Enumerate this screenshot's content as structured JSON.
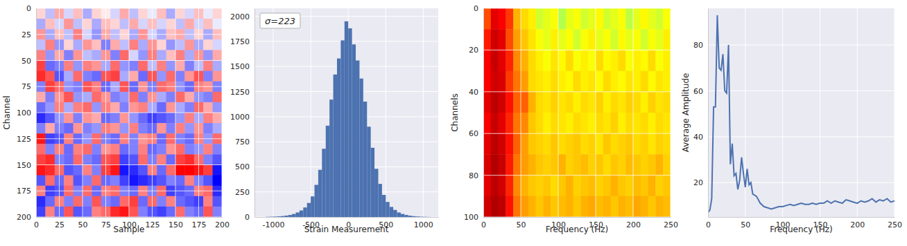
{
  "chart_data": [
    {
      "type": "heatmap",
      "x_label": "Sample",
      "y_label": "Channel",
      "xlim": [
        0,
        200
      ],
      "ylim": [
        200,
        0
      ],
      "xticks": [
        0,
        25,
        50,
        75,
        100,
        125,
        150,
        175,
        200
      ],
      "yticks": [
        0,
        25,
        50,
        75,
        100,
        125,
        150,
        175,
        200
      ],
      "grid": true,
      "color": "bwr",
      "color_range": [
        -600,
        600
      ],
      "x_edges": [
        0,
        10,
        20,
        30,
        40,
        50,
        60,
        70,
        80,
        90,
        100,
        110,
        120,
        130,
        140,
        150,
        160,
        170,
        180,
        190,
        200
      ],
      "y_edges": [
        0,
        10,
        20,
        30,
        40,
        50,
        60,
        70,
        80,
        90,
        100,
        110,
        120,
        130,
        140,
        150,
        160,
        170,
        180,
        190,
        200
      ],
      "cells": [
        [
          100,
          -150,
          200,
          -100,
          150,
          -200,
          100,
          50,
          -100,
          200,
          -150,
          100,
          -50,
          150,
          -200,
          100,
          -100,
          150,
          -50,
          100
        ],
        [
          -200,
          150,
          -100,
          250,
          -150,
          100,
          -200,
          150,
          100,
          -150,
          200,
          -100,
          150,
          -100,
          100,
          -150,
          200,
          -100,
          150,
          -50
        ],
        [
          250,
          -200,
          150,
          -150,
          300,
          -100,
          -250,
          200,
          -150,
          100,
          -200,
          250,
          -100,
          -200,
          150,
          200,
          -150,
          100,
          -200,
          150
        ],
        [
          -150,
          300,
          -250,
          100,
          -200,
          250,
          150,
          -300,
          200,
          -150,
          300,
          -200,
          250,
          100,
          -250,
          -150,
          250,
          -200,
          100,
          -100
        ],
        [
          300,
          -250,
          200,
          -300,
          250,
          -150,
          -200,
          250,
          -300,
          350,
          -100,
          -250,
          300,
          -200,
          150,
          300,
          -200,
          250,
          -250,
          200
        ],
        [
          450,
          -350,
          -300,
          300,
          -250,
          300,
          250,
          -200,
          350,
          -250,
          -300,
          350,
          -150,
          300,
          -250,
          200,
          -300,
          -150,
          300,
          -200
        ],
        [
          500,
          400,
          -400,
          -200,
          350,
          -300,
          -350,
          400,
          450,
          -200,
          200,
          -350,
          400,
          -250,
          350,
          -300,
          250,
          400,
          -300,
          250
        ],
        [
          -300,
          450,
          350,
          -250,
          -300,
          400,
          300,
          -350,
          -200,
          400,
          -350,
          250,
          -300,
          350,
          300,
          -250,
          -350,
          300,
          250,
          -300
        ],
        [
          200,
          -300,
          250,
          400,
          -250,
          -200,
          350,
          250,
          -300,
          -250,
          350,
          -300,
          250,
          -200,
          -300,
          350,
          200,
          -250,
          -300,
          350
        ],
        [
          -350,
          -250,
          300,
          -200,
          300,
          350,
          -250,
          300,
          200,
          -300,
          250,
          300,
          -200,
          -350,
          250,
          -200,
          -300,
          350,
          200,
          -250
        ],
        [
          -500,
          -400,
          -250,
          250,
          -300,
          250,
          200,
          -350,
          -300,
          250,
          -250,
          -350,
          -450,
          -400,
          -350,
          -250,
          300,
          -200,
          300,
          200
        ],
        [
          -300,
          200,
          -300,
          -350,
          250,
          -300,
          -250,
          300,
          250,
          -250,
          300,
          -300,
          -350,
          250,
          -300,
          300,
          -250,
          250,
          -300,
          -200
        ],
        [
          550,
          -450,
          -400,
          300,
          -350,
          -250,
          350,
          -300,
          -350,
          300,
          -300,
          250,
          300,
          -350,
          350,
          -300,
          -350,
          300,
          -250,
          350
        ],
        [
          350,
          -300,
          300,
          -350,
          300,
          350,
          -300,
          250,
          300,
          -350,
          -300,
          300,
          -350,
          -300,
          250,
          350,
          -300,
          -250,
          300,
          -300
        ],
        [
          450,
          500,
          -300,
          -350,
          350,
          -300,
          -350,
          400,
          450,
          -450,
          -400,
          350,
          -300,
          300,
          -350,
          450,
          500,
          350,
          -300,
          -400
        ],
        [
          550,
          500,
          350,
          -400,
          -350,
          300,
          -300,
          450,
          550,
          -550,
          -500,
          -400,
          300,
          -350,
          350,
          600,
          600,
          550,
          450,
          -550
        ],
        [
          -400,
          350,
          -350,
          300,
          -400,
          -300,
          350,
          -350,
          -300,
          -450,
          -550,
          -500,
          -450,
          -400,
          -300,
          -350,
          300,
          -300,
          -400,
          -600
        ],
        [
          300,
          -450,
          -400,
          350,
          -300,
          350,
          -350,
          300,
          350,
          -300,
          -350,
          300,
          -300,
          350,
          -450,
          -400,
          -350,
          300,
          350,
          -500
        ],
        [
          -500,
          -350,
          300,
          -300,
          350,
          -300,
          400,
          -300,
          -350,
          350,
          450,
          -350,
          350,
          -300,
          300,
          -350,
          -400,
          -450,
          300,
          -400
        ],
        [
          -450,
          300,
          -350,
          400,
          -400,
          -350,
          300,
          350,
          500,
          550,
          400,
          -300,
          -400,
          -450,
          -350,
          350,
          -300,
          -350,
          400,
          -300
        ]
      ]
    },
    {
      "type": "histogram",
      "x_label": "Strain Measurement",
      "annotation": "σ=223",
      "xlim": [
        -1250,
        1200
      ],
      "ylim": [
        0,
        2080
      ],
      "xticks": [
        -1000,
        -500,
        0,
        500,
        1000
      ],
      "yticks": [
        0,
        250,
        500,
        750,
        1000,
        1250,
        1500,
        1750,
        2000
      ],
      "grid": true,
      "color": "#4c72b0",
      "bins": [
        -1100,
        -1050,
        -1000,
        -950,
        -900,
        -850,
        -800,
        -750,
        -700,
        -650,
        -600,
        -550,
        -500,
        -450,
        -400,
        -350,
        -300,
        -250,
        -200,
        -150,
        -100,
        -50,
        0,
        50,
        100,
        150,
        200,
        250,
        300,
        350,
        400,
        450,
        500,
        550,
        600,
        650,
        700,
        750,
        800,
        850,
        900,
        950,
        1000,
        1050,
        1100
      ],
      "counts": [
        2,
        3,
        4,
        6,
        9,
        14,
        20,
        30,
        45,
        65,
        95,
        140,
        205,
        320,
        470,
        680,
        910,
        1170,
        1420,
        1580,
        1760,
        1950,
        1880,
        1720,
        1560,
        1380,
        1150,
        900,
        690,
        480,
        330,
        220,
        150,
        100,
        70,
        45,
        30,
        20,
        13,
        8,
        5,
        3,
        2,
        1
      ]
    },
    {
      "type": "heatmap",
      "x_label": "Frequency (Hz)",
      "y_label": "Channels",
      "xlim": [
        0,
        250
      ],
      "ylim": [
        100,
        0
      ],
      "xticks": [
        0,
        50,
        100,
        150,
        200,
        250
      ],
      "yticks": [
        0,
        20,
        40,
        60,
        80,
        100
      ],
      "grid": true,
      "color": "jet",
      "color_range": [
        0,
        100
      ],
      "x_edges": [
        0,
        10,
        20,
        30,
        40,
        50,
        60,
        70,
        80,
        90,
        100,
        110,
        120,
        130,
        140,
        150,
        160,
        170,
        180,
        190,
        200,
        210,
        220,
        230,
        240,
        250
      ],
      "y_edges": [
        0,
        10,
        20,
        30,
        40,
        50,
        60,
        70,
        80,
        90,
        100
      ],
      "cells": [
        [
          80,
          90,
          88,
          82,
          70,
          66,
          64,
          58,
          60,
          62,
          55,
          60,
          62,
          58,
          60,
          63,
          58,
          60,
          62,
          56,
          60,
          63,
          60,
          58,
          62
        ],
        [
          85,
          92,
          90,
          80,
          72,
          68,
          65,
          62,
          60,
          64,
          60,
          62,
          58,
          62,
          64,
          60,
          62,
          58,
          63,
          60,
          62,
          58,
          62,
          60,
          64
        ],
        [
          88,
          93,
          90,
          84,
          74,
          70,
          66,
          64,
          62,
          65,
          63,
          66,
          62,
          64,
          62,
          66,
          63,
          64,
          66,
          62,
          64,
          63,
          66,
          62,
          64
        ],
        [
          88,
          92,
          91,
          82,
          76,
          72,
          66,
          65,
          64,
          66,
          64,
          63,
          66,
          64,
          65,
          63,
          66,
          64,
          63,
          65,
          64,
          66,
          63,
          65,
          64
        ],
        [
          90,
          94,
          92,
          86,
          78,
          78,
          70,
          66,
          65,
          67,
          65,
          66,
          64,
          66,
          65,
          67,
          64,
          66,
          65,
          67,
          66,
          64,
          67,
          65,
          66
        ],
        [
          88,
          93,
          90,
          84,
          76,
          74,
          68,
          66,
          64,
          66,
          65,
          64,
          66,
          65,
          64,
          66,
          65,
          67,
          64,
          66,
          65,
          66,
          64,
          66,
          65
        ],
        [
          90,
          94,
          92,
          86,
          78,
          72,
          68,
          67,
          66,
          68,
          66,
          67,
          68,
          66,
          67,
          65,
          68,
          66,
          67,
          68,
          66,
          67,
          65,
          67,
          66
        ],
        [
          91,
          95,
          93,
          85,
          76,
          72,
          70,
          68,
          67,
          68,
          70,
          67,
          68,
          69,
          67,
          68,
          66,
          68,
          67,
          69,
          68,
          67,
          68,
          70,
          67
        ],
        [
          90,
          94,
          92,
          84,
          74,
          70,
          68,
          67,
          68,
          66,
          68,
          70,
          67,
          68,
          69,
          67,
          68,
          70,
          68,
          67,
          69,
          68,
          70,
          67,
          68
        ],
        [
          92,
          95,
          94,
          86,
          76,
          72,
          70,
          68,
          70,
          68,
          69,
          70,
          68,
          70,
          71,
          69,
          70,
          68,
          70,
          69,
          71,
          70,
          68,
          70,
          69
        ]
      ]
    },
    {
      "type": "line",
      "x_label": "Frequency (Hz)",
      "y_label": "Average Amplitude",
      "xlim": [
        0,
        250
      ],
      "ylim": [
        5,
        96
      ],
      "xticks": [
        0,
        50,
        100,
        150,
        200,
        250
      ],
      "yticks": [
        20,
        40,
        60,
        80
      ],
      "grid": true,
      "color": "#4c72b0",
      "x": [
        0,
        2.5,
        5,
        7.5,
        10,
        12.5,
        15,
        17.5,
        20,
        22.5,
        25,
        27.5,
        30,
        32.5,
        35,
        37.5,
        40,
        42.5,
        45,
        47.5,
        50,
        52.5,
        55,
        57.5,
        60,
        65,
        70,
        75,
        80,
        85,
        90,
        95,
        100,
        105,
        110,
        115,
        120,
        125,
        130,
        135,
        140,
        145,
        150,
        155,
        160,
        165,
        170,
        175,
        180,
        185,
        190,
        195,
        200,
        205,
        210,
        215,
        220,
        225,
        230,
        235,
        240,
        245,
        250
      ],
      "values": [
        7,
        8,
        13,
        53,
        53,
        93,
        70,
        69,
        76,
        60,
        59,
        80,
        28,
        37,
        23,
        24,
        17,
        21,
        31,
        24,
        18,
        26,
        19,
        20,
        15,
        14,
        11,
        9.5,
        9,
        8.5,
        9,
        9.5,
        9.5,
        10,
        10.5,
        10,
        10.5,
        11,
        10.5,
        10.5,
        11,
        10.5,
        11,
        11,
        12,
        11,
        12,
        11.5,
        11,
        12.5,
        12,
        11.5,
        11,
        12,
        11.5,
        12,
        13,
        11.5,
        12.5,
        12,
        13,
        11.5,
        12
      ]
    }
  ]
}
